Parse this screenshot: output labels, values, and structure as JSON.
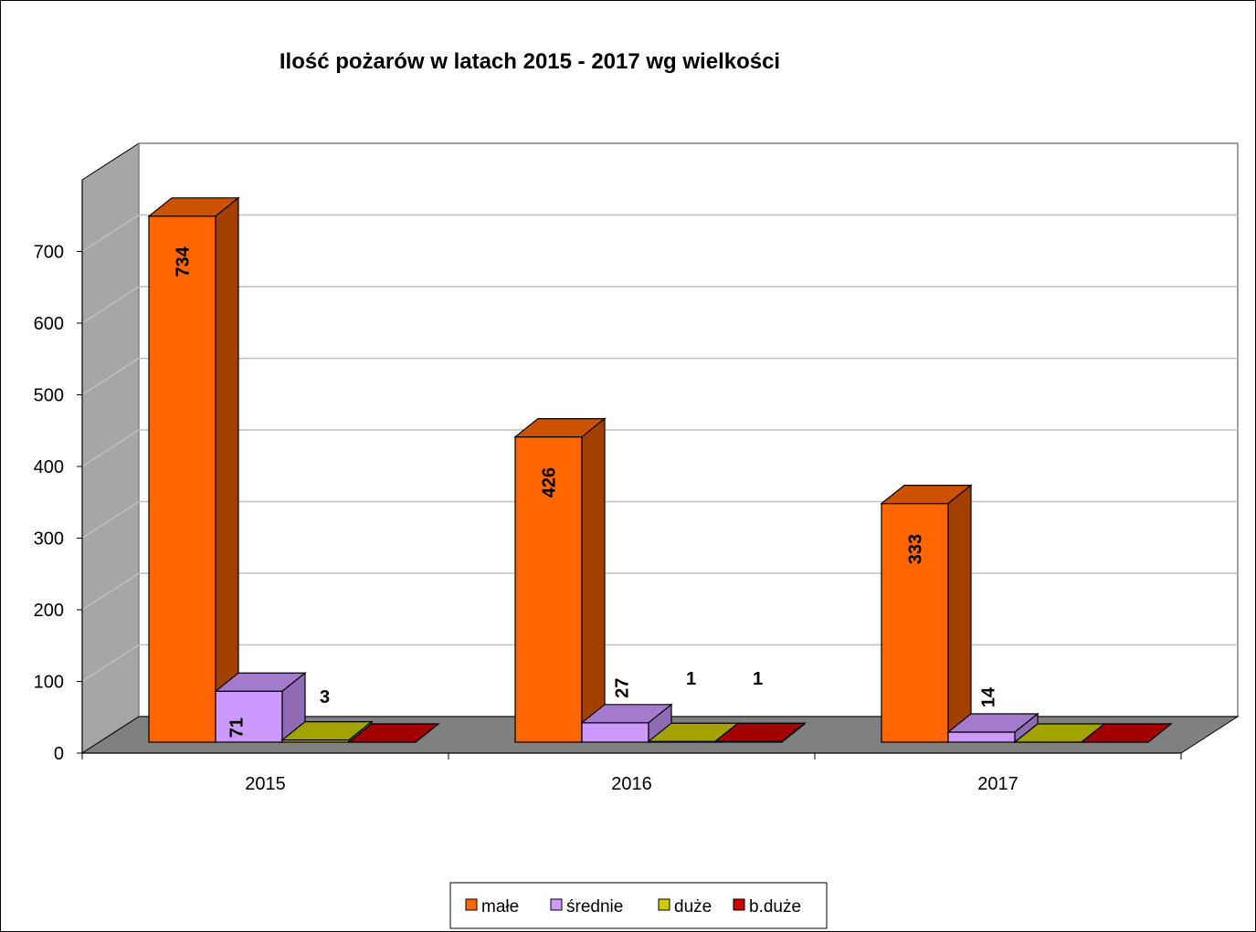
{
  "chart_data": {
    "type": "bar",
    "title": "Ilość pożarów w latach 2015 - 2017 wg wielkości",
    "categories": [
      "2015",
      "2016",
      "2017"
    ],
    "series": [
      {
        "name": "małe",
        "values": [
          734,
          426,
          333
        ],
        "color": "#FF6600",
        "top": "#CC5200",
        "side": "#A34000"
      },
      {
        "name": "średnie",
        "values": [
          71,
          27,
          14
        ],
        "color": "#CC99FF",
        "top": "#A37ACC",
        "side": "#8F6BB3"
      },
      {
        "name": "duże",
        "values": [
          3,
          1,
          0
        ],
        "color": "#CCCC00",
        "top": "#A3A300",
        "side": "#8F8F00"
      },
      {
        "name": "b.duże",
        "values": [
          0,
          1,
          0
        ],
        "color": "#CC0000",
        "top": "#A30000",
        "side": "#8F0000"
      }
    ],
    "data_labels": [
      [
        "734",
        "71",
        "3",
        ""
      ],
      [
        "426",
        "27",
        "1",
        "1"
      ],
      [
        "333",
        "14",
        "",
        ""
      ]
    ],
    "yticks": [
      "0",
      "100",
      "200",
      "300",
      "400",
      "500",
      "600",
      "700"
    ],
    "ylim": [
      0,
      800
    ],
    "legend_position": "bottom",
    "grid": true
  }
}
